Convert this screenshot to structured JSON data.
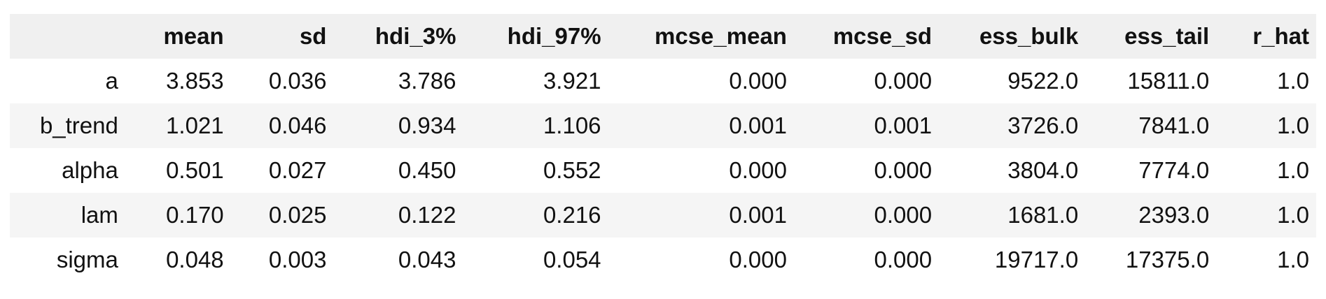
{
  "table": {
    "columns": [
      "",
      "mean",
      "sd",
      "hdi_3%",
      "hdi_97%",
      "mcse_mean",
      "mcse_sd",
      "ess_bulk",
      "ess_tail",
      "r_hat"
    ],
    "rows": [
      {
        "name": "a",
        "values": [
          "3.853",
          "0.036",
          "3.786",
          "3.921",
          "0.000",
          "0.000",
          "9522.0",
          "15811.0",
          "1.0"
        ]
      },
      {
        "name": "b_trend",
        "values": [
          "1.021",
          "0.046",
          "0.934",
          "1.106",
          "0.001",
          "0.001",
          "3726.0",
          "7841.0",
          "1.0"
        ]
      },
      {
        "name": "alpha",
        "values": [
          "0.501",
          "0.027",
          "0.450",
          "0.552",
          "0.000",
          "0.000",
          "3804.0",
          "7774.0",
          "1.0"
        ]
      },
      {
        "name": "lam",
        "values": [
          "0.170",
          "0.025",
          "0.122",
          "0.216",
          "0.001",
          "0.000",
          "1681.0",
          "2393.0",
          "1.0"
        ]
      },
      {
        "name": "sigma",
        "values": [
          "0.048",
          "0.003",
          "0.043",
          "0.054",
          "0.000",
          "0.000",
          "19717.0",
          "17375.0",
          "1.0"
        ]
      }
    ]
  }
}
